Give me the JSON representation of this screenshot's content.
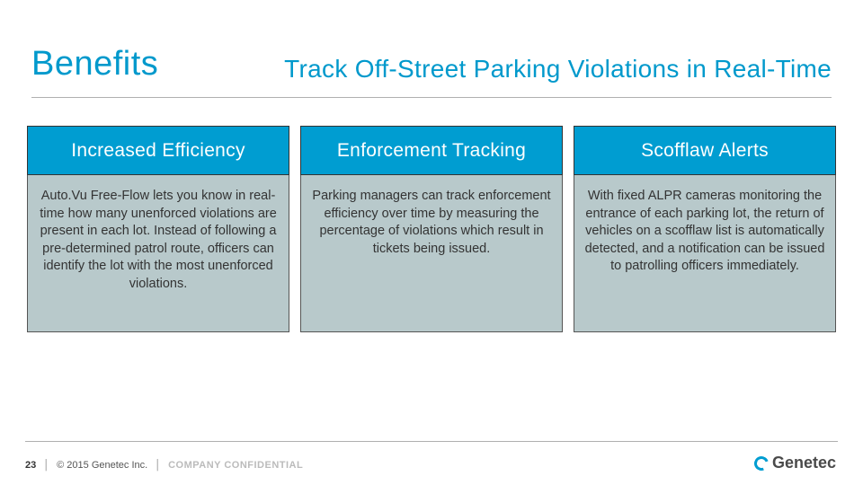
{
  "header": {
    "title_left": "Benefits",
    "title_right": "Track Off-Street Parking Violations in Real-Time"
  },
  "columns": [
    {
      "head": "Increased Efficiency",
      "body": "Auto.Vu Free-Flow lets you know in real-time how many unenforced violations are present in each lot. Instead of following a pre-determined patrol route, officers can identify the lot with the most unenforced violations."
    },
    {
      "head": "Enforcement Tracking",
      "body": "Parking managers can track enforcement efficiency over time by measuring the percentage of violations which result in tickets being issued."
    },
    {
      "head": "Scofflaw Alerts",
      "body": "With fixed ALPR cameras monitoring the entrance of each parking lot, the return of vehicles on a scofflaw list is automatically detected, and a notification can be issued to patrolling officers immediately."
    }
  ],
  "footer": {
    "page_num": "23",
    "copyright": "© 2015 Genetec Inc.",
    "confidential": "COMPANY CONFIDENTIAL",
    "logo_text": "Genetec"
  },
  "colors": {
    "brand_blue": "#009dd1",
    "title_blue": "#0099cc",
    "body_bg": "#b8c9cb",
    "border_dark": "#333333",
    "text_body": "#333333",
    "hr_gray": "#b0b0b0",
    "confidential_gray": "#bbbbbb"
  }
}
